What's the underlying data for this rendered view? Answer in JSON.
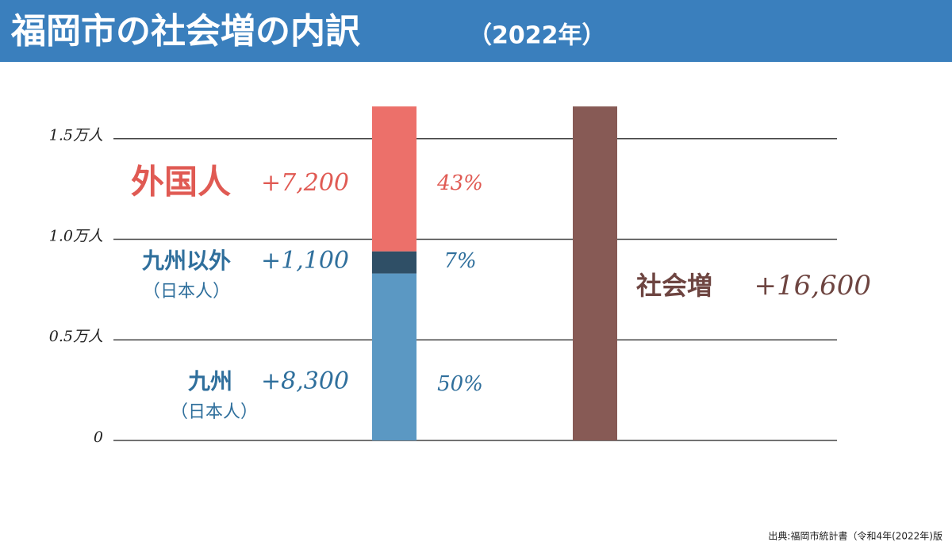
{
  "chart_data": {
    "type": "stacked_bar",
    "title": "福岡市の社会増の内訳",
    "subtitle": "（2022年）",
    "source": "出典:福岡市統計書（令和4年(2022年)版",
    "categories": [
      null,
      null
    ],
    "series": [
      {
        "name": "九州",
        "sublabel": "（日本人）",
        "color": "#5b98c3",
        "values": [
          0.83,
          null
        ],
        "value_labels": [
          "+8,300",
          null
        ],
        "share": 50,
        "share_label": "50%"
      },
      {
        "name": "九州以外",
        "sublabel": "（日本人）",
        "color": "#2f4f66",
        "values": [
          0.11,
          null
        ],
        "value_labels": [
          "+1,100",
          null
        ],
        "share": 7,
        "share_label": "7%"
      },
      {
        "name": "外国人",
        "color": "#ec706a",
        "values": [
          0.72,
          null
        ],
        "value_labels": [
          "+7,200",
          null
        ],
        "share": 43,
        "share_label": "43%"
      },
      {
        "name": "社会増",
        "color": "#875a55",
        "values": [
          null,
          1.66
        ],
        "value_labels": [
          null,
          "+16,600"
        ]
      }
    ],
    "ylim": [
      0,
      1.7
    ],
    "yticks": [
      0,
      {
        "value": 0.5,
        "label": "0.5万人"
      },
      {
        "value": 1.0,
        "label": "1.0万人"
      },
      {
        "value": 1.5,
        "label": "1.5万人"
      }
    ],
    "grid": true
  }
}
